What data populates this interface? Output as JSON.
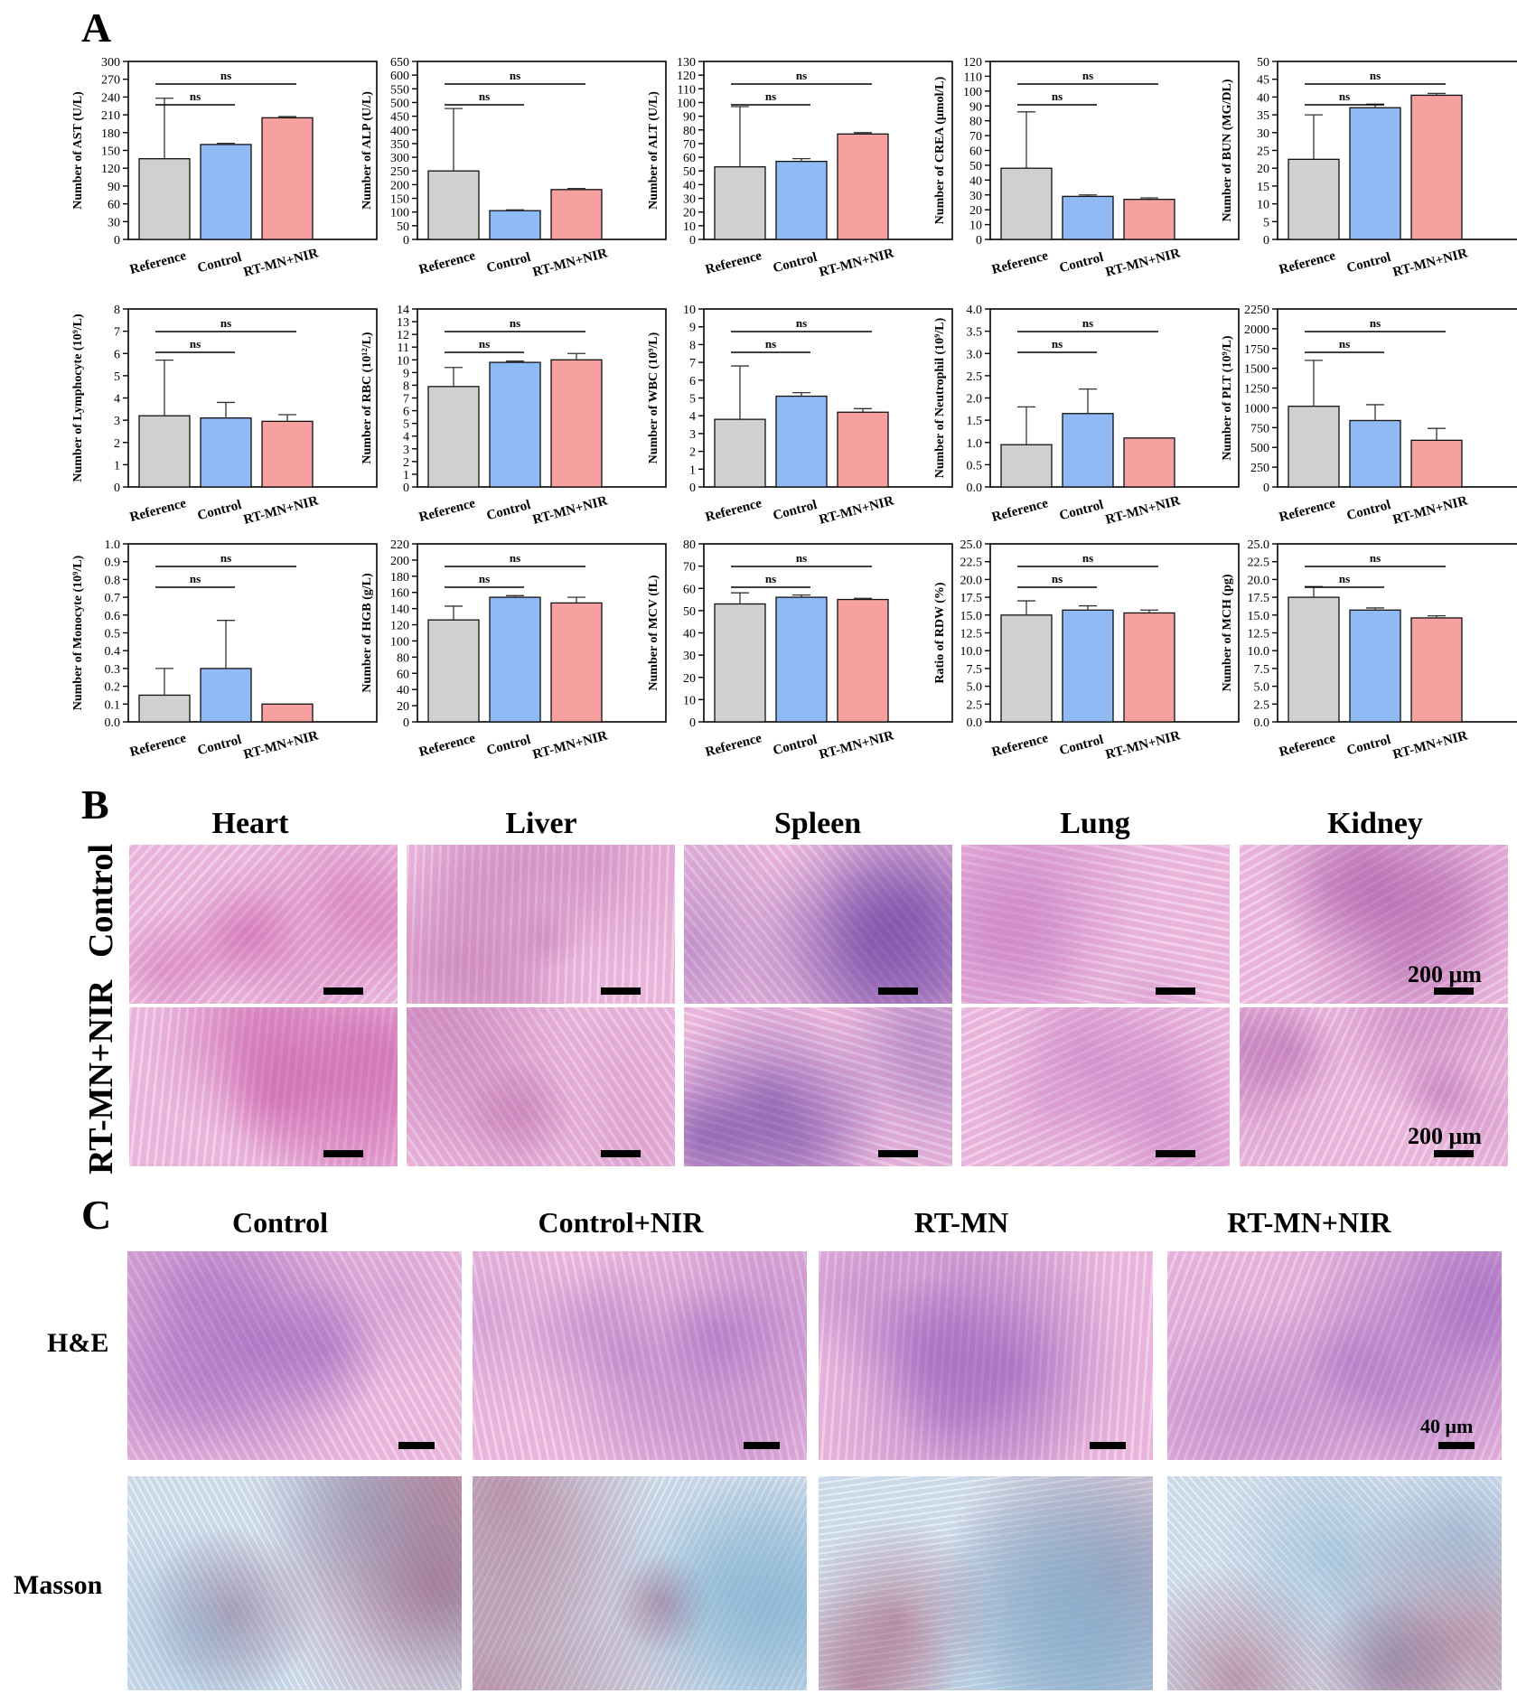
{
  "panels": {
    "a": "A",
    "b": "B",
    "c": "C"
  },
  "groups": [
    "Reference",
    "Control",
    "RT-MN+NIR"
  ],
  "colors": {
    "Reference": "#d0d0d0",
    "Control": "#8fbaf3",
    "RT-MN+NIR": "#f7a0a0",
    "he_base": "#eebfe0",
    "he_dark": "#8a4fb2",
    "masson_base": "#d9e3ee",
    "masson_blue": "#7fb0d0",
    "masson_red": "#9e4a6a"
  },
  "sig_label": "ns",
  "chart_data": [
    {
      "type": "bar",
      "ylabel": "Number of AST (U/L)",
      "ylim": [
        0,
        300
      ],
      "ticks": [
        0,
        30,
        60,
        90,
        120,
        150,
        180,
        210,
        240,
        270,
        300
      ],
      "categories": [
        "Reference",
        "Control",
        "RT-MN+NIR"
      ],
      "values": [
        136,
        160,
        205
      ],
      "errors": [
        102,
        2,
        2
      ],
      "comparisons": [
        {
          "from": "Reference",
          "to": "Control",
          "label": "ns"
        },
        {
          "from": "Reference",
          "to": "RT-MN+NIR",
          "label": "ns"
        }
      ]
    },
    {
      "type": "bar",
      "ylabel": "Number of ALP (U/L)",
      "ylim": [
        0,
        650
      ],
      "ticks": [
        0,
        50,
        100,
        150,
        200,
        250,
        300,
        350,
        400,
        450,
        500,
        550,
        600,
        650
      ],
      "categories": [
        "Reference",
        "Control",
        "RT-MN+NIR"
      ],
      "values": [
        250,
        105,
        182
      ],
      "errors": [
        228,
        3,
        4
      ],
      "comparisons": [
        {
          "from": "Reference",
          "to": "Control",
          "label": "ns"
        },
        {
          "from": "Reference",
          "to": "RT-MN+NIR",
          "label": "ns"
        }
      ]
    },
    {
      "type": "bar",
      "ylabel": "Number of ALT (U/L)",
      "ylim": [
        0,
        130
      ],
      "ticks": [
        0,
        10,
        20,
        30,
        40,
        50,
        60,
        70,
        80,
        90,
        100,
        110,
        120,
        130
      ],
      "categories": [
        "Reference",
        "Control",
        "RT-MN+NIR"
      ],
      "values": [
        53,
        57,
        77
      ],
      "errors": [
        44,
        2,
        1
      ],
      "comparisons": [
        {
          "from": "Reference",
          "to": "Control",
          "label": "ns"
        },
        {
          "from": "Reference",
          "to": "RT-MN+NIR",
          "label": "ns"
        }
      ]
    },
    {
      "type": "bar",
      "ylabel": "Number of CREA (μmol/L)",
      "ylim": [
        0,
        120
      ],
      "ticks": [
        0,
        10,
        20,
        30,
        40,
        50,
        60,
        70,
        80,
        90,
        100,
        110,
        120
      ],
      "categories": [
        "Reference",
        "Control",
        "RT-MN+NIR"
      ],
      "values": [
        48,
        29,
        27
      ],
      "errors": [
        38,
        1,
        1
      ],
      "comparisons": [
        {
          "from": "Reference",
          "to": "Control",
          "label": "ns"
        },
        {
          "from": "Reference",
          "to": "RT-MN+NIR",
          "label": "ns"
        }
      ]
    },
    {
      "type": "bar",
      "ylabel": "Number of BUN (MG/DL)",
      "ylim": [
        0,
        50
      ],
      "ticks": [
        0,
        5,
        10,
        15,
        20,
        25,
        30,
        35,
        40,
        45,
        50
      ],
      "categories": [
        "Reference",
        "Control",
        "RT-MN+NIR"
      ],
      "values": [
        22.5,
        37,
        40.5
      ],
      "errors": [
        12.5,
        1,
        0.5
      ],
      "comparisons": [
        {
          "from": "Reference",
          "to": "Control",
          "label": "ns"
        },
        {
          "from": "Reference",
          "to": "RT-MN+NIR",
          "label": "ns"
        }
      ]
    },
    {
      "type": "bar",
      "ylabel": "Number of Lymphocyte (10⁹/L)",
      "ylim": [
        0,
        8
      ],
      "ticks": [
        0,
        1,
        2,
        3,
        4,
        5,
        6,
        7,
        8
      ],
      "categories": [
        "Reference",
        "Control",
        "RT-MN+NIR"
      ],
      "values": [
        3.2,
        3.1,
        2.95
      ],
      "errors": [
        2.5,
        0.7,
        0.3
      ],
      "comparisons": [
        {
          "from": "Reference",
          "to": "Control",
          "label": "ns"
        },
        {
          "from": "Reference",
          "to": "RT-MN+NIR",
          "label": "ns"
        }
      ]
    },
    {
      "type": "bar",
      "ylabel": "Number of RBC (10¹²/L)",
      "ylim": [
        0,
        14
      ],
      "ticks": [
        0,
        1,
        2,
        3,
        4,
        5,
        6,
        7,
        8,
        9,
        10,
        11,
        12,
        13,
        14
      ],
      "categories": [
        "Reference",
        "Control",
        "RT-MN+NIR"
      ],
      "values": [
        7.9,
        9.8,
        10
      ],
      "errors": [
        1.5,
        0.1,
        0.5
      ],
      "comparisons": [
        {
          "from": "Reference",
          "to": "Control",
          "label": "ns"
        },
        {
          "from": "Reference",
          "to": "RT-MN+NIR",
          "label": "ns"
        }
      ]
    },
    {
      "type": "bar",
      "ylabel": "Number of WBC (10⁹/L)",
      "ylim": [
        0,
        10
      ],
      "ticks": [
        0,
        1,
        2,
        3,
        4,
        5,
        6,
        7,
        8,
        9,
        10
      ],
      "categories": [
        "Reference",
        "Control",
        "RT-MN+NIR"
      ],
      "values": [
        3.8,
        5.1,
        4.2
      ],
      "errors": [
        3.0,
        0.2,
        0.2
      ],
      "comparisons": [
        {
          "from": "Reference",
          "to": "Control",
          "label": "ns"
        },
        {
          "from": "Reference",
          "to": "RT-MN+NIR",
          "label": "ns"
        }
      ]
    },
    {
      "type": "bar",
      "ylabel": "Number of Neutrophil (10⁹/L)",
      "ylim": [
        0,
        4.0
      ],
      "ticks": [
        0,
        0.5,
        1.0,
        1.5,
        2.0,
        2.5,
        3.0,
        3.5,
        4.0
      ],
      "decimals": 1,
      "categories": [
        "Reference",
        "Control",
        "RT-MN+NIR"
      ],
      "values": [
        0.95,
        1.65,
        1.1
      ],
      "errors": [
        0.85,
        0.55,
        0
      ],
      "comparisons": [
        {
          "from": "Reference",
          "to": "Control",
          "label": "ns"
        },
        {
          "from": "Reference",
          "to": "RT-MN+NIR",
          "label": "ns"
        }
      ]
    },
    {
      "type": "bar",
      "ylabel": "Number of PLT (10⁹/L)",
      "ylim": [
        0,
        2250
      ],
      "ticks": [
        0,
        250,
        500,
        750,
        1000,
        1250,
        1500,
        1750,
        2000,
        2250
      ],
      "categories": [
        "Reference",
        "Control",
        "RT-MN+NIR"
      ],
      "values": [
        1020,
        840,
        590
      ],
      "errors": [
        580,
        200,
        150
      ],
      "comparisons": [
        {
          "from": "Reference",
          "to": "Control",
          "label": "ns"
        },
        {
          "from": "Reference",
          "to": "RT-MN+NIR",
          "label": "ns"
        }
      ]
    },
    {
      "type": "bar",
      "ylabel": "Number of Monocyte (10⁹/L)",
      "ylim": [
        0,
        1.0
      ],
      "ticks": [
        0,
        0.1,
        0.2,
        0.3,
        0.4,
        0.5,
        0.6,
        0.7,
        0.8,
        0.9,
        1.0
      ],
      "decimals": 1,
      "categories": [
        "Reference",
        "Control",
        "RT-MN+NIR"
      ],
      "values": [
        0.15,
        0.3,
        0.1
      ],
      "errors": [
        0.15,
        0.27,
        0
      ],
      "comparisons": [
        {
          "from": "Reference",
          "to": "Control",
          "label": "ns"
        },
        {
          "from": "Reference",
          "to": "RT-MN+NIR",
          "label": "ns"
        }
      ]
    },
    {
      "type": "bar",
      "ylabel": "Number of HGB (g/L)",
      "ylim": [
        0,
        220
      ],
      "ticks": [
        0,
        20,
        40,
        60,
        80,
        100,
        120,
        140,
        160,
        180,
        200,
        220
      ],
      "categories": [
        "Reference",
        "Control",
        "RT-MN+NIR"
      ],
      "values": [
        126,
        154,
        147
      ],
      "errors": [
        17,
        2,
        7
      ],
      "comparisons": [
        {
          "from": "Reference",
          "to": "Control",
          "label": "ns"
        },
        {
          "from": "Reference",
          "to": "RT-MN+NIR",
          "label": "ns"
        }
      ]
    },
    {
      "type": "bar",
      "ylabel": "Number of MCV (fL)",
      "ylim": [
        0,
        80
      ],
      "ticks": [
        0,
        10,
        20,
        30,
        40,
        50,
        60,
        70,
        80
      ],
      "categories": [
        "Reference",
        "Control",
        "RT-MN+NIR"
      ],
      "values": [
        53,
        56,
        55
      ],
      "errors": [
        5,
        1,
        0.5
      ],
      "comparisons": [
        {
          "from": "Reference",
          "to": "Control",
          "label": "ns"
        },
        {
          "from": "Reference",
          "to": "RT-MN+NIR",
          "label": "ns"
        }
      ]
    },
    {
      "type": "bar",
      "ylabel": "Ratio of RDW (%)",
      "ylim": [
        0,
        25
      ],
      "ticks": [
        0,
        2.5,
        5.0,
        7.5,
        10.0,
        12.5,
        15.0,
        17.5,
        20.0,
        22.5,
        25.0
      ],
      "decimals": 1,
      "categories": [
        "Reference",
        "Control",
        "RT-MN+NIR"
      ],
      "values": [
        15,
        15.7,
        15.3
      ],
      "errors": [
        2,
        0.6,
        0.4
      ],
      "comparisons": [
        {
          "from": "Reference",
          "to": "Control",
          "label": "ns"
        },
        {
          "from": "Reference",
          "to": "RT-MN+NIR",
          "label": "ns"
        }
      ]
    },
    {
      "type": "bar",
      "ylabel": "Number of MCH (pg)",
      "ylim": [
        0,
        25
      ],
      "ticks": [
        0,
        2.5,
        5.0,
        7.5,
        10.0,
        12.5,
        15.0,
        17.5,
        20.0,
        22.5,
        25.0
      ],
      "decimals": 1,
      "categories": [
        "Reference",
        "Control",
        "RT-MN+NIR"
      ],
      "values": [
        17.5,
        15.7,
        14.6
      ],
      "errors": [
        1.5,
        0.3,
        0.3
      ],
      "comparisons": [
        {
          "from": "Reference",
          "to": "Control",
          "label": "ns"
        },
        {
          "from": "Reference",
          "to": "RT-MN+NIR",
          "label": "ns"
        }
      ]
    }
  ],
  "panel_b": {
    "organs": [
      "Heart",
      "Liver",
      "Spleen",
      "Lung",
      "Kidney"
    ],
    "rows": [
      "Control",
      "RT-MN+NIR"
    ],
    "scale_label": "200 μm"
  },
  "panel_c": {
    "groups": [
      "Control",
      "Control+NIR",
      "RT-MN",
      "RT-MN+NIR"
    ],
    "stains": [
      "H&E",
      "Masson"
    ],
    "scale_label": "40 μm"
  }
}
